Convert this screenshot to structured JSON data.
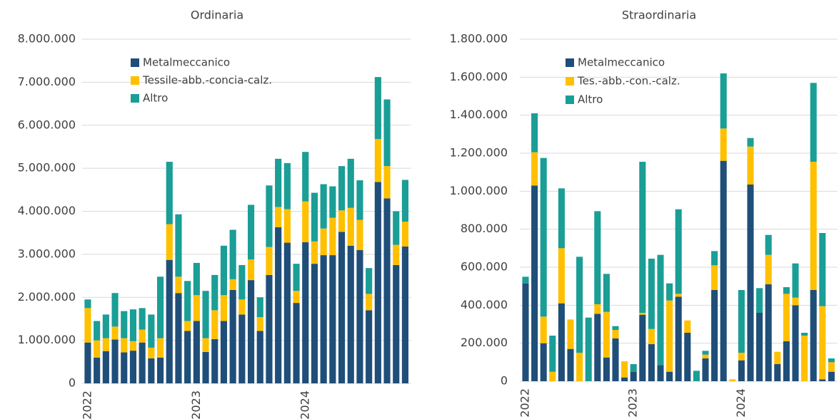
{
  "chart_data": [
    {
      "type": "bar",
      "stacked": true,
      "title": "Ordinaria",
      "categories": [
        "2022",
        null,
        null,
        null,
        null,
        null,
        null,
        null,
        null,
        null,
        null,
        null,
        "2023",
        null,
        null,
        null,
        null,
        null,
        null,
        null,
        null,
        null,
        null,
        null,
        "2024",
        null,
        null,
        null,
        null,
        null,
        null,
        null,
        null,
        null,
        null,
        null
      ],
      "series": [
        {
          "name": "Metalmeccanico",
          "color": "#1f4e79",
          "values": [
            950000,
            600000,
            750000,
            1020000,
            720000,
            760000,
            950000,
            580000,
            600000,
            2870000,
            2100000,
            1220000,
            1450000,
            730000,
            1030000,
            1450000,
            2170000,
            1600000,
            2400000,
            1220000,
            2520000,
            3630000,
            3270000,
            1870000,
            3280000,
            2780000,
            2980000,
            2980000,
            3520000,
            3200000,
            3100000,
            1700000,
            4680000,
            4300000,
            2750000,
            3180000
          ]
        },
        {
          "name": "Tessile-abb.-concia-calz.",
          "color": "#ffc000",
          "values": [
            800000,
            400000,
            300000,
            300000,
            330000,
            220000,
            300000,
            250000,
            450000,
            830000,
            380000,
            230000,
            600000,
            320000,
            670000,
            600000,
            250000,
            350000,
            480000,
            320000,
            650000,
            470000,
            780000,
            280000,
            950000,
            520000,
            620000,
            870000,
            500000,
            880000,
            700000,
            380000,
            1000000,
            750000,
            470000,
            580000
          ]
        },
        {
          "name": "Altro",
          "color": "#1a9e96",
          "values": [
            200000,
            450000,
            550000,
            780000,
            630000,
            740000,
            500000,
            770000,
            1430000,
            1450000,
            1450000,
            930000,
            750000,
            1100000,
            820000,
            1150000,
            1150000,
            800000,
            1270000,
            460000,
            1430000,
            1120000,
            1070000,
            630000,
            1150000,
            1130000,
            1030000,
            730000,
            1030000,
            1140000,
            920000,
            600000,
            1440000,
            1550000,
            780000,
            970000
          ]
        }
      ],
      "ylim": [
        0,
        8000000
      ],
      "yticks": [
        0,
        {
          "value": 1000000,
          "label": "1.000.000"
        },
        {
          "value": 2000000,
          "label": "2.000.000"
        },
        {
          "value": 3000000,
          "label": "3.000.000"
        },
        {
          "value": 4000000,
          "label": "4.000.000"
        },
        {
          "value": 5000000,
          "label": "5.000.000"
        },
        {
          "value": 6000000,
          "label": "6.000.000"
        },
        {
          "value": 7000000,
          "label": "7.000.000"
        },
        {
          "value": 8000000,
          "label": "8.000.000"
        }
      ],
      "grid": true,
      "legend": "upper left"
    },
    {
      "type": "bar",
      "stacked": true,
      "title": "Straordinaria",
      "categories": [
        "2022",
        null,
        null,
        null,
        null,
        null,
        null,
        null,
        null,
        null,
        null,
        null,
        "2023",
        null,
        null,
        null,
        null,
        null,
        null,
        null,
        null,
        null,
        null,
        null,
        "2024",
        null,
        null,
        null,
        null,
        null,
        null,
        null,
        null,
        null,
        null
      ],
      "series": [
        {
          "name": "Metalmeccanico",
          "color": "#1f4e79",
          "values": [
            515000,
            1030000,
            200000,
            0,
            410000,
            170000,
            0,
            0,
            355000,
            125000,
            225000,
            20000,
            50000,
            350000,
            195000,
            85000,
            50000,
            445000,
            255000,
            0,
            120000,
            480000,
            1160000,
            0,
            110000,
            1035000,
            360000,
            510000,
            90000,
            210000,
            400000,
            0,
            480000,
            10000,
            50000
          ]
        },
        {
          "name": "Tes.-abb.-con.-calz.",
          "color": "#ffc000",
          "values": [
            0,
            175000,
            140000,
            50000,
            290000,
            155000,
            150000,
            0,
            50000,
            240000,
            45000,
            85000,
            0,
            10000,
            80000,
            0,
            375000,
            15000,
            65000,
            0,
            20000,
            130000,
            170000,
            10000,
            40000,
            200000,
            0,
            155000,
            65000,
            250000,
            40000,
            240000,
            675000,
            385000,
            50000
          ]
        },
        {
          "name": "Altro",
          "color": "#1a9e96",
          "values": [
            35000,
            205000,
            835000,
            190000,
            315000,
            0,
            505000,
            335000,
            490000,
            200000,
            20000,
            0,
            40000,
            795000,
            370000,
            580000,
            90000,
            445000,
            0,
            55000,
            20000,
            75000,
            290000,
            0,
            330000,
            45000,
            130000,
            105000,
            0,
            35000,
            180000,
            15000,
            415000,
            385000,
            20000
          ]
        }
      ],
      "ylim": [
        0,
        1800000
      ],
      "yticks": [
        0,
        {
          "value": 200000,
          "label": "200.000"
        },
        {
          "value": 400000,
          "label": "400.000"
        },
        {
          "value": 600000,
          "label": "600.000"
        },
        {
          "value": 800000,
          "label": "800.000"
        },
        {
          "value": 1000000,
          "label": "1.000.000"
        },
        {
          "value": 1200000,
          "label": "1.200.000"
        },
        {
          "value": 1400000,
          "label": "1.400.000"
        },
        {
          "value": 1600000,
          "label": "1.600.000"
        },
        {
          "value": 1800000,
          "label": "1.800.000"
        }
      ],
      "grid": true,
      "legend": "upper left"
    }
  ]
}
